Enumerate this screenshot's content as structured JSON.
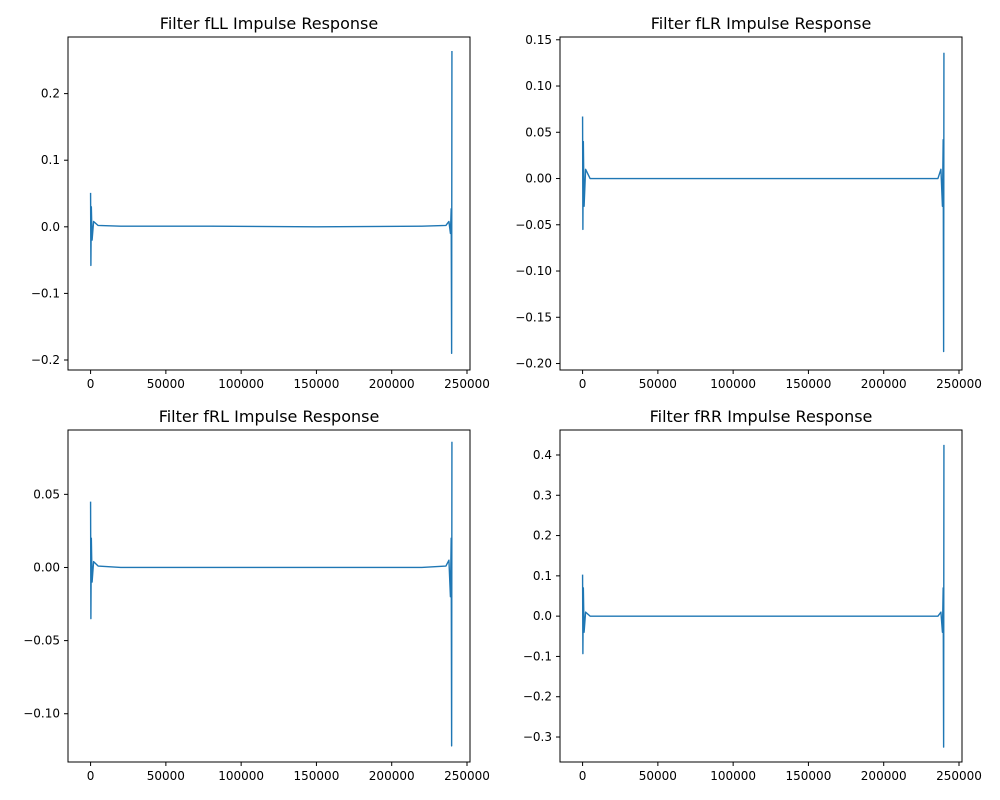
{
  "figure": {
    "line_color": "#1f77b4"
  },
  "chart_data": [
    {
      "type": "line",
      "title": "Filter fLL Impulse Response",
      "xlabel": "",
      "ylabel": "",
      "xlim": [
        -15000,
        252000
      ],
      "ylim": [
        -0.215,
        0.285
      ],
      "xticks": [
        0,
        50000,
        100000,
        150000,
        200000,
        250000
      ],
      "xtick_labels": [
        "0",
        "50000",
        "100000",
        "150000",
        "200000",
        "250000"
      ],
      "yticks": [
        -0.2,
        -0.1,
        0.0,
        0.1,
        0.2
      ],
      "ytick_labels": [
        "−0.2",
        "−0.1",
        "0.0",
        "0.1",
        "0.2"
      ],
      "grid": false,
      "series": [
        {
          "color": "#1f77b4",
          "x": [
            0,
            200,
            500,
            1000,
            2000,
            5000,
            20000,
            80000,
            150000,
            220000,
            236000,
            238000,
            239000,
            239500,
            239800,
            240000
          ],
          "y": [
            0.051,
            -0.058,
            0.03,
            -0.02,
            0.008,
            0.002,
            0.001,
            0.001,
            0.0,
            0.001,
            0.002,
            0.008,
            -0.01,
            0.027,
            -0.19,
            0.264
          ]
        }
      ]
    },
    {
      "type": "line",
      "title": "Filter fLR Impulse Response",
      "xlabel": "",
      "ylabel": "",
      "xlim": [
        -15000,
        252000
      ],
      "ylim": [
        -0.207,
        0.153
      ],
      "xticks": [
        0,
        50000,
        100000,
        150000,
        200000,
        250000
      ],
      "xtick_labels": [
        "0",
        "50000",
        "100000",
        "150000",
        "200000",
        "250000"
      ],
      "yticks": [
        -0.2,
        -0.15,
        -0.1,
        -0.05,
        0.0,
        0.05,
        0.1,
        0.15
      ],
      "ytick_labels": [
        "−0.20",
        "−0.15",
        "−0.10",
        "−0.05",
        "0.00",
        "0.05",
        "0.10",
        "0.15"
      ],
      "grid": false,
      "series": [
        {
          "color": "#1f77b4",
          "x": [
            0,
            200,
            500,
            1000,
            2000,
            5000,
            20000,
            80000,
            150000,
            220000,
            236000,
            238000,
            239000,
            239500,
            239800,
            240000
          ],
          "y": [
            0.067,
            -0.055,
            0.04,
            -0.03,
            0.01,
            0.0,
            0.0,
            0.0,
            0.0,
            0.0,
            0.0,
            0.01,
            -0.03,
            0.042,
            -0.187,
            0.136
          ]
        }
      ]
    },
    {
      "type": "line",
      "title": "Filter fRL Impulse Response",
      "xlabel": "",
      "ylabel": "",
      "xlim": [
        -15000,
        252000
      ],
      "ylim": [
        -0.133,
        0.094
      ],
      "xticks": [
        0,
        50000,
        100000,
        150000,
        200000,
        250000
      ],
      "xtick_labels": [
        "0",
        "50000",
        "100000",
        "150000",
        "200000",
        "250000"
      ],
      "yticks": [
        -0.1,
        -0.05,
        0.0,
        0.05
      ],
      "ytick_labels": [
        "−0.10",
        "−0.05",
        "0.00",
        "0.05"
      ],
      "grid": false,
      "series": [
        {
          "color": "#1f77b4",
          "x": [
            0,
            200,
            500,
            1000,
            2000,
            5000,
            20000,
            80000,
            150000,
            220000,
            236000,
            238000,
            239000,
            239500,
            239800,
            240000
          ],
          "y": [
            0.045,
            -0.035,
            0.02,
            -0.01,
            0.004,
            0.001,
            0.0,
            0.0,
            0.0,
            0.0,
            0.001,
            0.005,
            -0.02,
            0.02,
            -0.122,
            0.086
          ]
        }
      ]
    },
    {
      "type": "line",
      "title": "Filter fRR Impulse Response",
      "xlabel": "",
      "ylabel": "",
      "xlim": [
        -15000,
        252000
      ],
      "ylim": [
        -0.362,
        0.462
      ],
      "xticks": [
        0,
        50000,
        100000,
        150000,
        200000,
        250000
      ],
      "xtick_labels": [
        "0",
        "50000",
        "100000",
        "150000",
        "200000",
        "250000"
      ],
      "yticks": [
        -0.3,
        -0.2,
        -0.1,
        0.0,
        0.1,
        0.2,
        0.3,
        0.4
      ],
      "ytick_labels": [
        "−0.3",
        "−0.2",
        "−0.1",
        "0.0",
        "0.1",
        "0.2",
        "0.3",
        "0.4"
      ],
      "grid": false,
      "series": [
        {
          "color": "#1f77b4",
          "x": [
            0,
            200,
            500,
            1000,
            2000,
            5000,
            20000,
            80000,
            150000,
            220000,
            236000,
            238000,
            239000,
            239500,
            239800,
            240000
          ],
          "y": [
            0.103,
            -0.093,
            0.07,
            -0.04,
            0.01,
            0.0,
            0.0,
            0.0,
            0.0,
            0.0,
            0.0,
            0.01,
            -0.04,
            0.07,
            -0.325,
            0.425
          ]
        }
      ]
    }
  ]
}
